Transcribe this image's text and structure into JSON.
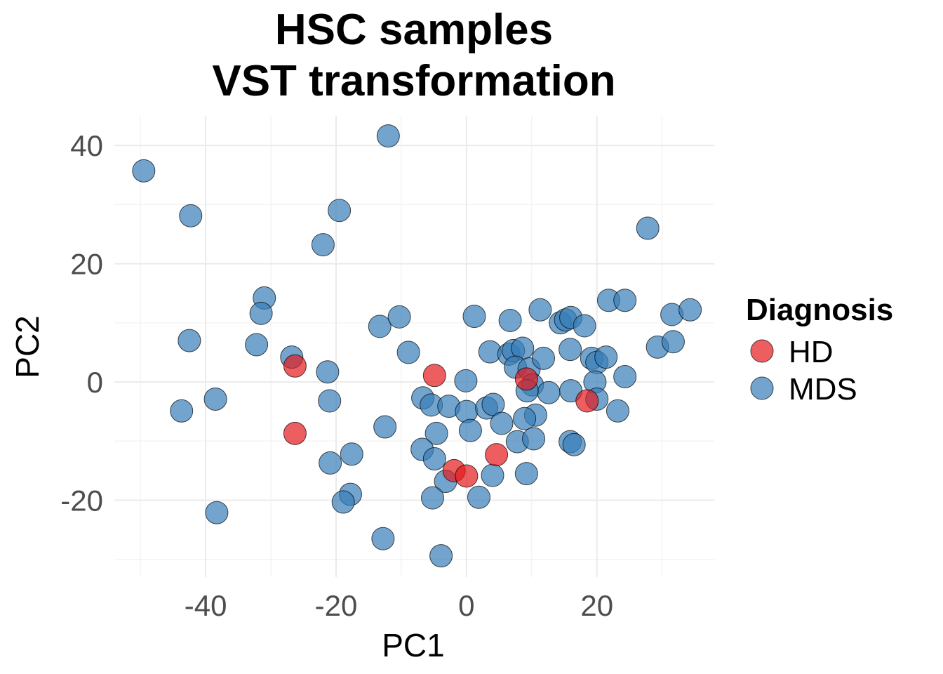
{
  "chart_data": {
    "type": "scatter",
    "title": [
      "HSC samples",
      "VST transformation"
    ],
    "xlabel": "PC1",
    "ylabel": "PC2",
    "xlim": [
      -54,
      38
    ],
    "ylim": [
      -33,
      45
    ],
    "x_ticks": [
      -40,
      -20,
      0,
      20
    ],
    "y_ticks": [
      -20,
      0,
      20,
      40
    ],
    "grid": true,
    "legend": {
      "title": "Diagnosis",
      "placement": "right",
      "entries": [
        {
          "label": "HD",
          "color": "#e41a1c"
        },
        {
          "label": "MDS",
          "color": "#377eb8"
        }
      ]
    },
    "point_alpha": 0.7,
    "series": [
      {
        "name": "MDS",
        "color": "#377eb8",
        "points": [
          [
            -49.5,
            35.7
          ],
          [
            -42.3,
            28.1
          ],
          [
            -12,
            41.6
          ],
          [
            -19.5,
            29
          ],
          [
            -22,
            23.2
          ],
          [
            27.8,
            26
          ],
          [
            -31,
            14.2
          ],
          [
            -31.5,
            11.6
          ],
          [
            -42.5,
            7
          ],
          [
            -32.2,
            6.3
          ],
          [
            -26.8,
            4.2
          ],
          [
            -21.3,
            1.7
          ],
          [
            -21,
            -3.2
          ],
          [
            -38.5,
            -2.9
          ],
          [
            -43.7,
            -4.9
          ],
          [
            -13.3,
            9.4
          ],
          [
            -10.3,
            11
          ],
          [
            -8.9,
            5
          ],
          [
            1.2,
            11.1
          ],
          [
            6.7,
            10.4
          ],
          [
            11.3,
            12.2
          ],
          [
            14.4,
            10
          ],
          [
            15.2,
            10.5
          ],
          [
            16,
            10.9
          ],
          [
            18.1,
            9.5
          ],
          [
            21.8,
            13.8
          ],
          [
            24.3,
            13.8
          ],
          [
            31.5,
            11.4
          ],
          [
            34.3,
            12.2
          ],
          [
            29.3,
            5.9
          ],
          [
            31.7,
            6.8
          ],
          [
            24.3,
            0.9
          ],
          [
            3.6,
            5.1
          ],
          [
            6.5,
            4.7
          ],
          [
            7.2,
            5.3
          ],
          [
            8.6,
            5.7
          ],
          [
            7.5,
            2.5
          ],
          [
            9.6,
            2.2
          ],
          [
            10.1,
            -0.5
          ],
          [
            11.8,
            4
          ],
          [
            15.9,
            5.5
          ],
          [
            19.2,
            4
          ],
          [
            20,
            3.3
          ],
          [
            21.4,
            4.2
          ],
          [
            19.7,
            0
          ],
          [
            20,
            -2.9
          ],
          [
            23.2,
            -4.9
          ],
          [
            16,
            -1.5
          ],
          [
            12.6,
            -1.8
          ],
          [
            9.3,
            -1.5
          ],
          [
            -0.1,
            0.2
          ],
          [
            -6.7,
            -2.7
          ],
          [
            -5.4,
            -3.9
          ],
          [
            -2.7,
            -4.1
          ],
          [
            0,
            -5
          ],
          [
            3.1,
            -4.4
          ],
          [
            4.1,
            -3.8
          ],
          [
            5.4,
            -7
          ],
          [
            10.6,
            -5.6
          ],
          [
            8.9,
            -6.2
          ],
          [
            0.6,
            -8.2
          ],
          [
            -4.6,
            -8.7
          ],
          [
            -12.5,
            -7.6
          ],
          [
            -6.8,
            -11.4
          ],
          [
            -4.9,
            -13
          ],
          [
            -20.9,
            -13.7
          ],
          [
            -17.6,
            -12.2
          ],
          [
            -3.2,
            -16.8
          ],
          [
            4,
            -15.8
          ],
          [
            9.2,
            -15.5
          ],
          [
            7.8,
            -10.1
          ],
          [
            10.3,
            -9.6
          ],
          [
            15.9,
            -10.1
          ],
          [
            16.5,
            -10.6
          ],
          [
            -5.2,
            -19.6
          ],
          [
            -17.8,
            -19
          ],
          [
            -18.9,
            -20.3
          ],
          [
            1.9,
            -19.5
          ],
          [
            -12.8,
            -26.5
          ],
          [
            -3.9,
            -29.4
          ],
          [
            -38.3,
            -22.1
          ]
        ]
      },
      {
        "name": "HD",
        "color": "#e41a1c",
        "points": [
          [
            -26.3,
            2.7
          ],
          [
            -26.3,
            -8.7
          ],
          [
            -4.9,
            1.1
          ],
          [
            9.2,
            0.5
          ],
          [
            18.5,
            -3.2
          ],
          [
            4.6,
            -12.3
          ],
          [
            -1.9,
            -15
          ],
          [
            0,
            -15.9
          ]
        ]
      }
    ]
  }
}
